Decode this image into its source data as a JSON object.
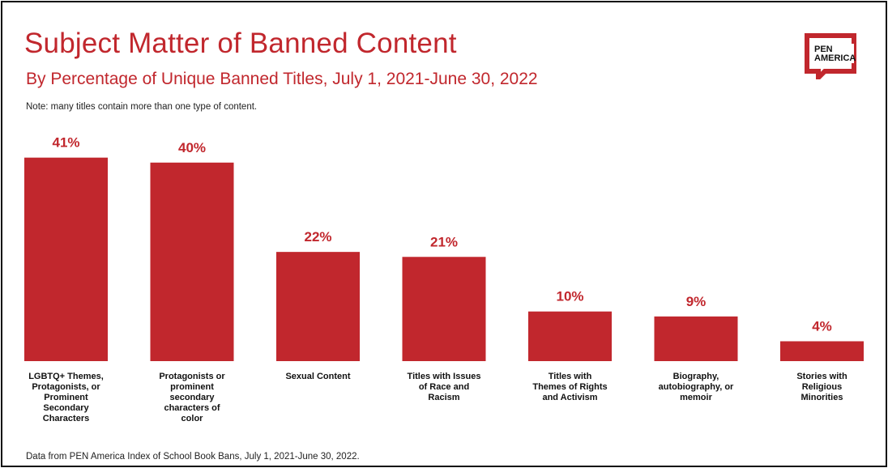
{
  "title": "Subject Matter of Banned Content",
  "subtitle": "By Percentage of Unique Banned Titles, July 1, 2021-June 30, 2022",
  "note": "Note: many titles contain more than one type of content.",
  "source": "Data from PEN America Index of School Book Bans, July 1, 2021-June 30, 2022.",
  "logo": {
    "line1": "PEN",
    "line2": "AMERICA"
  },
  "colors": {
    "bar": "#c1272d",
    "accent": "#c1272d"
  },
  "chart_data": {
    "type": "bar",
    "title": "Subject Matter of Banned Content",
    "xlabel": "",
    "ylabel": "",
    "ylim": [
      0,
      45
    ],
    "categories": [
      [
        "LGBTQ+ Themes,",
        "Protagonists, or",
        "Prominent",
        "Secondary",
        "Characters"
      ],
      [
        "Protagonists or",
        "prominent",
        "secondary",
        "characters of",
        "color"
      ],
      [
        "Sexual Content"
      ],
      [
        "Titles with Issues",
        "of Race and",
        "Racism"
      ],
      [
        "Titles with",
        "Themes of Rights",
        "and Activism"
      ],
      [
        "Biography,",
        "autobiography, or",
        "memoir"
      ],
      [
        "Stories with",
        "Religious",
        "Minorities"
      ]
    ],
    "values": [
      41,
      40,
      22,
      21,
      10,
      9,
      4
    ],
    "value_labels": [
      "41%",
      "40%",
      "22%",
      "21%",
      "10%",
      "9%",
      "4%"
    ],
    "grid": false,
    "legend": "none"
  }
}
